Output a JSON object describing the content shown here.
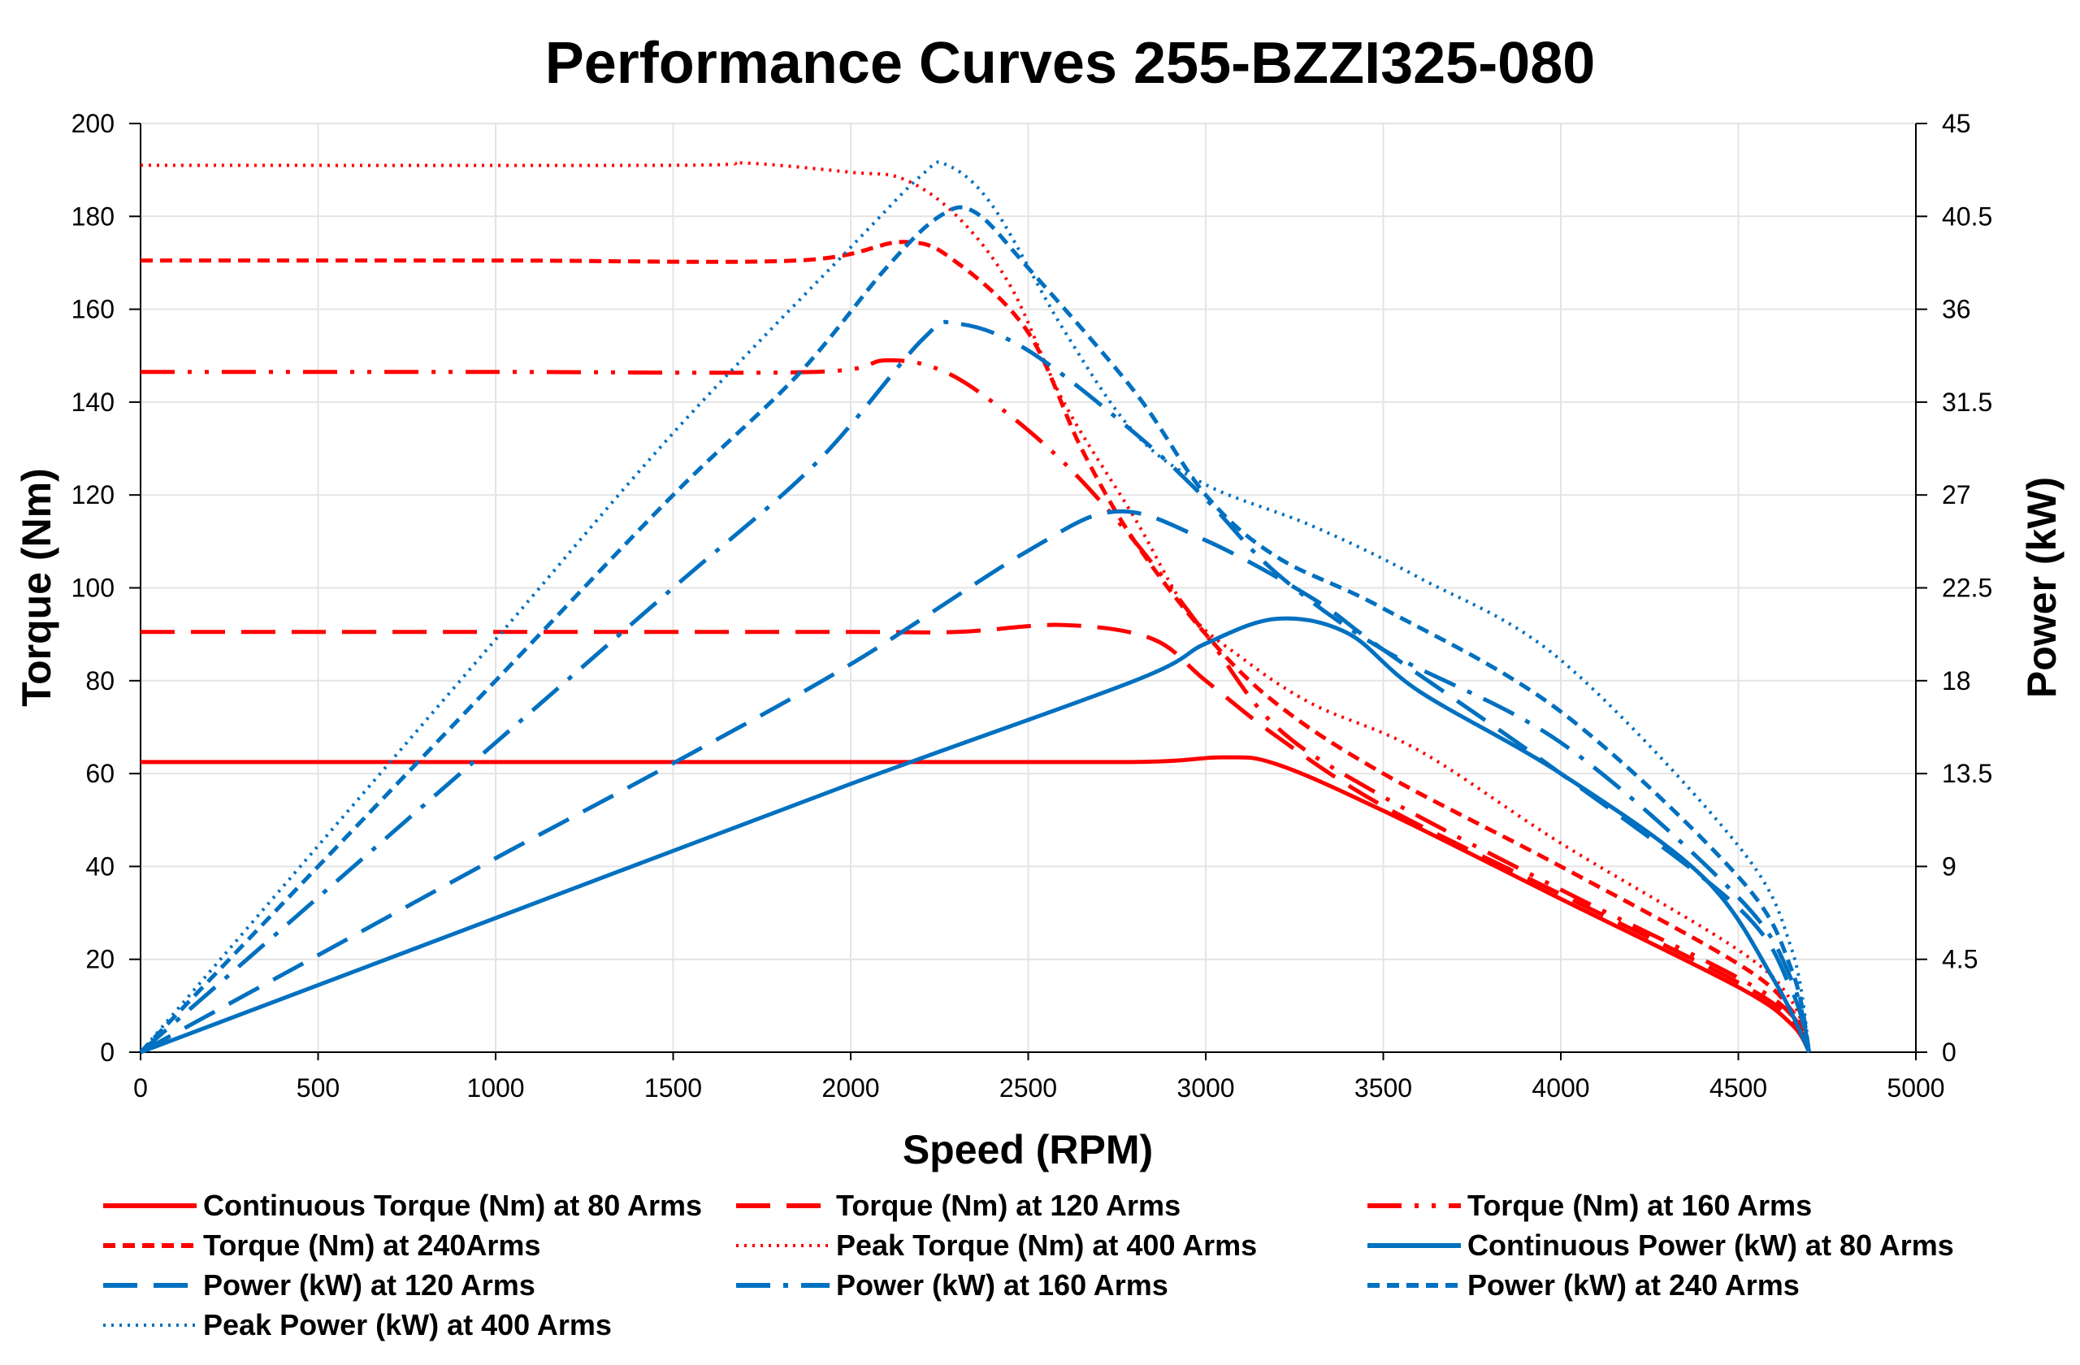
{
  "chart_data": {
    "type": "line",
    "title": "Performance Curves 255-BZZI325-080",
    "xlabel": "Speed (RPM)",
    "ylabel": "Torque (Nm)",
    "y2label": "Power (kW)",
    "xlim": [
      0,
      5000
    ],
    "ylim": [
      0,
      200
    ],
    "y2lim": [
      0,
      45
    ],
    "xticks": [
      "0",
      "500",
      "1000",
      "1500",
      "2000",
      "2500",
      "3000",
      "3500",
      "4000",
      "4500",
      "5000"
    ],
    "yticks": [
      "0",
      "20",
      "40",
      "60",
      "80",
      "100",
      "120",
      "140",
      "160",
      "180",
      "200"
    ],
    "y2ticks": [
      "0",
      "4.5",
      "9",
      "13.5",
      "18",
      "22.5",
      "27",
      "31.5",
      "36",
      "40.5",
      "45"
    ],
    "grid": true,
    "legend_position": "bottom",
    "colors": {
      "torque": "#ff0000",
      "power": "#0070c0"
    },
    "series": [
      {
        "name": "Continuous Torque (Nm) at 80 Arms",
        "axis": "left",
        "color": "#ff0000",
        "style": "solid",
        "x": [
          0,
          1000,
          2000,
          2800,
          3050,
          3200,
          3500,
          4000,
          4500,
          4650,
          4700
        ],
        "y": [
          62.5,
          62.5,
          62.5,
          62.5,
          63.5,
          62,
          52,
          33,
          14,
          6,
          0
        ]
      },
      {
        "name": "Torque (Nm) at 120 Arms",
        "axis": "left",
        "color": "#ff0000",
        "style": "long-dash",
        "x": [
          0,
          1000,
          2000,
          2300,
          2600,
          2850,
          3000,
          3200,
          3500,
          4000,
          4500,
          4650,
          4700
        ],
        "y": [
          90.5,
          90.5,
          90.5,
          90.5,
          92,
          89,
          80,
          68,
          53,
          34,
          15,
          7,
          0
        ]
      },
      {
        "name": "Torque (Nm) at 160 Arms",
        "axis": "left",
        "color": "#ff0000",
        "style": "dash-dot-dot",
        "x": [
          0,
          1000,
          1900,
          2100,
          2250,
          2400,
          2600,
          2800,
          3000,
          3200,
          3500,
          4000,
          4500,
          4650,
          4700
        ],
        "y": [
          146.5,
          146.5,
          146.5,
          149,
          147,
          140,
          127,
          110,
          90,
          70,
          55,
          35,
          16,
          8,
          0
        ]
      },
      {
        "name": "Torque (Nm) at 240Arms",
        "axis": "left",
        "color": "#ff0000",
        "style": "short-dash",
        "x": [
          0,
          1000,
          1850,
          2150,
          2300,
          2500,
          2650,
          2800,
          3000,
          3200,
          3500,
          4000,
          4500,
          4650,
          4700
        ],
        "y": [
          170.5,
          170.5,
          170.5,
          174.5,
          170,
          155,
          130,
          110,
          90,
          75,
          60,
          40,
          19,
          9,
          0
        ]
      },
      {
        "name": "Peak Torque (Nm) at 400  Arms",
        "axis": "left",
        "color": "#ff0000",
        "style": "dotted",
        "x": [
          0,
          1500,
          1700,
          2000,
          2150,
          2300,
          2450,
          2600,
          2800,
          2950,
          3100,
          3300,
          3600,
          4000,
          4500,
          4650,
          4700
        ],
        "y": [
          191,
          191,
          191.5,
          189.5,
          188,
          180,
          165,
          140,
          115,
          95,
          85,
          75,
          65,
          45,
          22,
          11,
          0
        ]
      },
      {
        "name": "Continuous Power (kW) at 80 Arms",
        "axis": "right",
        "color": "#0070c0",
        "style": "solid",
        "x": [
          0,
          1000,
          2000,
          2800,
          3000,
          3200,
          3400,
          3600,
          4000,
          4400,
          4600,
          4700
        ],
        "y": [
          0,
          6.5,
          13,
          18,
          19.8,
          21,
          20.3,
          17.5,
          13.5,
          8.5,
          3.5,
          0
        ]
      },
      {
        "name": "Power (kW) at 120 Arms",
        "axis": "right",
        "color": "#0070c0",
        "style": "long-dash",
        "x": [
          0,
          500,
          1000,
          1500,
          2000,
          2500,
          2750,
          3000,
          3300,
          3500,
          4000,
          4500,
          4650,
          4700
        ],
        "y": [
          0,
          4.7,
          9.4,
          14,
          18.8,
          24.3,
          26.2,
          24.8,
          22,
          19.5,
          13.5,
          7,
          3,
          0
        ]
      },
      {
        "name": "Power (kW) at 160 Arms",
        "axis": "right",
        "color": "#0070c0",
        "style": "dash-dot",
        "x": [
          0,
          500,
          1000,
          1500,
          1900,
          2200,
          2300,
          2500,
          2800,
          3000,
          3200,
          3500,
          4000,
          4500,
          4650,
          4700
        ],
        "y": [
          0,
          7.5,
          15,
          22.5,
          28.5,
          34.5,
          35.3,
          34,
          30,
          26.8,
          23.2,
          19.5,
          15,
          7.5,
          3.5,
          0
        ]
      },
      {
        "name": "Power (kW) at 240 Arms",
        "axis": "right",
        "color": "#0070c0",
        "style": "short-dash",
        "x": [
          0,
          500,
          1000,
          1500,
          1850,
          2100,
          2250,
          2350,
          2500,
          2800,
          3000,
          3200,
          3500,
          4000,
          4500,
          4650,
          4700
        ],
        "y": [
          0,
          9,
          18,
          27,
          32.8,
          38,
          40.5,
          40.7,
          38,
          32,
          27,
          24,
          21.5,
          16.5,
          8.5,
          4,
          0
        ]
      },
      {
        "name": "Peak Power (kW) at 400 Arms",
        "axis": "right",
        "color": "#0070c0",
        "style": "dotted",
        "x": [
          0,
          500,
          1000,
          1500,
          2000,
          2200,
          2270,
          2400,
          2600,
          2800,
          3000,
          3300,
          3600,
          4000,
          4500,
          4650,
          4700
        ],
        "y": [
          0,
          10,
          20,
          30,
          39,
          42.5,
          43,
          41,
          35,
          30,
          27.5,
          25.5,
          23,
          19,
          10,
          5,
          0
        ]
      }
    ]
  }
}
